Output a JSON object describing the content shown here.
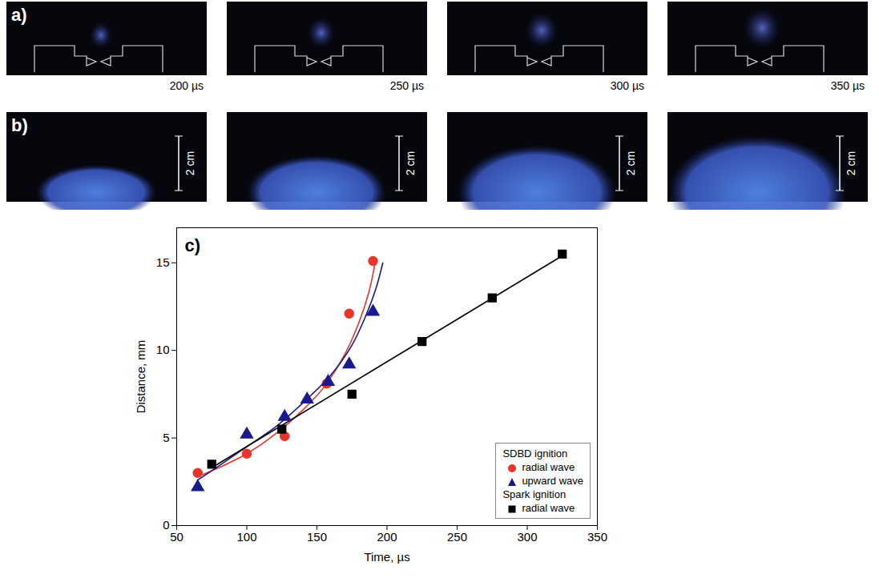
{
  "photo_panels": [
    {
      "letter": "a)",
      "time_labels": [
        "200 µs",
        "250 µs",
        "300 µs",
        "350 µs"
      ]
    },
    {
      "letter": "b)",
      "scale_bar_label": "2 cm"
    }
  ],
  "chart_data": {
    "type": "scatter",
    "letter": "c)",
    "x_label": "Time, µs",
    "y_label": "Distance, mm",
    "xlim": [
      50,
      350
    ],
    "xticks": [
      50,
      100,
      150,
      200,
      250,
      300,
      350
    ],
    "ylim": [
      0,
      17
    ],
    "yticks": [
      0,
      5,
      10,
      15
    ],
    "legend": "bottom-right",
    "series": [
      {
        "name": "radial wave",
        "group": "SDBD ignition",
        "color": "#e8352b",
        "marker": "circle",
        "x": [
          65,
          100,
          127,
          157,
          173,
          190
        ],
        "values": [
          3.0,
          4.1,
          5.1,
          8.1,
          12.1,
          15.1
        ],
        "fit": {
          "x": [
            65,
            80,
            100,
            120,
            140,
            155,
            170,
            180,
            187,
            192
          ],
          "values": [
            2.8,
            3.3,
            4.1,
            5.2,
            6.6,
            7.9,
            9.8,
            11.6,
            13.3,
            15.2
          ]
        }
      },
      {
        "name": "upward wave",
        "group": "SDBD ignition",
        "color": "#1a1a8c",
        "marker": "triangle",
        "x": [
          65,
          100,
          127,
          143,
          158,
          173,
          190
        ],
        "values": [
          2.2,
          5.2,
          6.2,
          7.2,
          8.2,
          9.2,
          12.2
        ],
        "fit": {
          "x": [
            65,
            80,
            100,
            120,
            140,
            160,
            175,
            185,
            192,
            197
          ],
          "values": [
            2.6,
            3.4,
            4.5,
            5.6,
            7.0,
            8.6,
            10.3,
            12.0,
            13.5,
            15.0
          ]
        }
      },
      {
        "name": "radial wave",
        "group": "Spark ignition",
        "color": "#000000",
        "marker": "square",
        "x": [
          75,
          125,
          175,
          225,
          275,
          325
        ],
        "values": [
          3.5,
          5.5,
          7.5,
          10.5,
          13.0,
          15.5
        ],
        "fit": {
          "x": [
            75,
            325
          ],
          "values": [
            3.3,
            15.4
          ]
        }
      }
    ]
  }
}
